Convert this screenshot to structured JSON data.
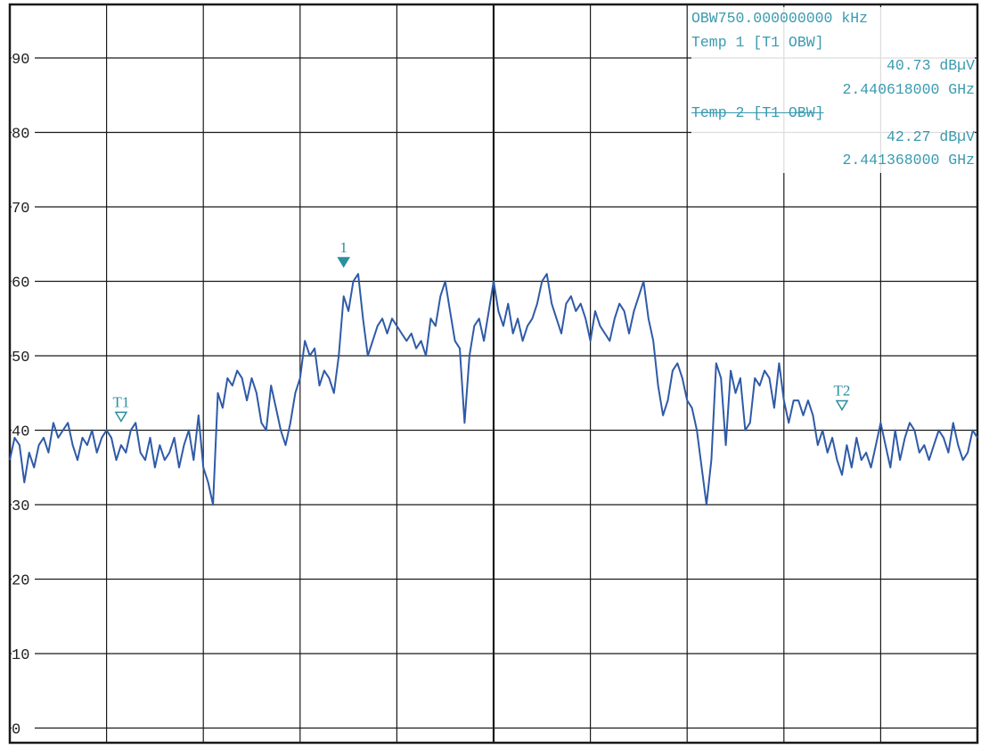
{
  "colors": {
    "trace": "#2f5aa8",
    "marker": "#2a8fa0",
    "grid": "#1a1a1a",
    "readout_text": "#3a9ab0"
  },
  "readout": {
    "obw_line": "OBW750.000000000 kHz",
    "temp1_header": "Temp 1 [T1 OBW]",
    "temp1_level": "40.73 dBµV",
    "temp1_freq": "2.440618000 GHz",
    "temp2_header": "Temp 2 [T1 OBW]",
    "temp2_level": "42.27 dBµV",
    "temp2_freq": "2.441368000 GHz"
  },
  "markers": {
    "peak_label": "1",
    "t1_label": "T1",
    "t2_label": "T2"
  },
  "chart_data": {
    "type": "line",
    "title": "",
    "xlabel": "",
    "ylabel": "",
    "ylim": [
      -5,
      95
    ],
    "y_ticks": [
      "90",
      "80",
      "70",
      "60",
      "50",
      "40",
      "30",
      "20",
      "10",
      "0"
    ],
    "y_tick_values": [
      90,
      80,
      70,
      60,
      50,
      40,
      30,
      20,
      10,
      0
    ],
    "x_divisions": 10,
    "grid": true,
    "x_unit_note": "divisions",
    "series": [
      {
        "name": "",
        "x": [
          0.0,
          0.05,
          0.1,
          0.15,
          0.2,
          0.25,
          0.3,
          0.35,
          0.4,
          0.45,
          0.5,
          0.55,
          0.6,
          0.65,
          0.7,
          0.75,
          0.8,
          0.85,
          0.9,
          0.95,
          1.0,
          1.05,
          1.1,
          1.15,
          1.2,
          1.25,
          1.3,
          1.35,
          1.4,
          1.45,
          1.5,
          1.55,
          1.6,
          1.65,
          1.7,
          1.75,
          1.8,
          1.85,
          1.9,
          1.95,
          2.0,
          2.05,
          2.1,
          2.15,
          2.2,
          2.25,
          2.3,
          2.35,
          2.4,
          2.45,
          2.5,
          2.55,
          2.6,
          2.65,
          2.7,
          2.75,
          2.8,
          2.85,
          2.9,
          2.95,
          3.0,
          3.05,
          3.1,
          3.15,
          3.2,
          3.25,
          3.3,
          3.35,
          3.4,
          3.45,
          3.5,
          3.55,
          3.6,
          3.65,
          3.7,
          3.75,
          3.8,
          3.85,
          3.9,
          3.95,
          4.0,
          4.05,
          4.1,
          4.15,
          4.2,
          4.25,
          4.3,
          4.35,
          4.4,
          4.45,
          4.5,
          4.55,
          4.6,
          4.65,
          4.7,
          4.75,
          4.8,
          4.85,
          4.9,
          4.95,
          5.0,
          5.05,
          5.1,
          5.15,
          5.2,
          5.25,
          5.3,
          5.35,
          5.4,
          5.45,
          5.5,
          5.55,
          5.6,
          5.65,
          5.7,
          5.75,
          5.8,
          5.85,
          5.9,
          5.95,
          6.0,
          6.05,
          6.1,
          6.15,
          6.2,
          6.25,
          6.3,
          6.35,
          6.4,
          6.45,
          6.5,
          6.55,
          6.6,
          6.65,
          6.7,
          6.75,
          6.8,
          6.85,
          6.9,
          6.95,
          7.0,
          7.05,
          7.1,
          7.15,
          7.2,
          7.25,
          7.3,
          7.35,
          7.4,
          7.45,
          7.5,
          7.55,
          7.6,
          7.65,
          7.7,
          7.75,
          7.8,
          7.85,
          7.9,
          7.95,
          8.0,
          8.05,
          8.1,
          8.15,
          8.2,
          8.25,
          8.3,
          8.35,
          8.4,
          8.45,
          8.5,
          8.55,
          8.6,
          8.65,
          8.7,
          8.75,
          8.8,
          8.85,
          8.9,
          8.95,
          9.0,
          9.05,
          9.1,
          9.15,
          9.2,
          9.25,
          9.3,
          9.35,
          9.4,
          9.45,
          9.5,
          9.55,
          9.6,
          9.65,
          9.7,
          9.75,
          9.8,
          9.85,
          9.9,
          9.95,
          10.0
        ],
        "y": [
          36,
          39,
          38,
          33,
          37,
          35,
          38,
          39,
          37,
          41,
          39,
          40,
          41,
          38,
          36,
          39,
          38,
          40,
          37,
          39,
          40,
          39,
          36,
          38,
          37,
          40,
          41,
          37,
          36,
          39,
          35,
          38,
          36,
          37,
          39,
          35,
          38,
          40,
          36,
          42,
          35,
          33,
          30,
          45,
          43,
          47,
          46,
          48,
          47,
          44,
          47,
          45,
          41,
          40,
          46,
          43,
          40,
          38,
          41,
          45,
          47,
          52,
          50,
          51,
          46,
          48,
          47,
          45,
          50,
          58,
          56,
          60,
          61,
          55,
          50,
          52,
          54,
          55,
          53,
          55,
          54,
          53,
          52,
          53,
          51,
          52,
          50,
          55,
          54,
          58,
          60,
          56,
          52,
          51,
          41,
          50,
          54,
          55,
          52,
          56,
          60,
          56,
          54,
          57,
          53,
          55,
          52,
          54,
          55,
          57,
          60,
          61,
          57,
          55,
          53,
          57,
          58,
          56,
          57,
          55,
          52,
          56,
          54,
          53,
          52,
          55,
          57,
          56,
          53,
          56,
          58,
          60,
          55,
          52,
          46,
          42,
          44,
          48,
          49,
          47,
          44,
          43,
          40,
          35,
          30,
          36,
          49,
          47,
          38,
          48,
          45,
          47,
          40,
          41,
          47,
          46,
          48,
          47,
          43,
          49,
          44,
          41,
          44,
          44,
          42,
          44,
          42,
          38,
          40,
          37,
          39,
          36,
          34,
          38,
          35,
          39,
          36,
          37,
          35,
          38,
          41,
          38,
          35,
          40,
          36,
          39,
          41,
          40,
          37,
          38,
          36,
          38,
          40,
          39,
          37,
          41,
          38,
          36,
          37,
          40,
          39
        ],
        "color": "#2f5aa8"
      }
    ],
    "marker_points": [
      {
        "label": "T1",
        "x": 1.15,
        "y": 40.73,
        "style": "open-triangle"
      },
      {
        "label": "1",
        "x": 3.45,
        "y": 61.5,
        "style": "filled-triangle"
      },
      {
        "label": "T2",
        "x": 8.6,
        "y": 42.27,
        "style": "open-triangle"
      }
    ]
  }
}
